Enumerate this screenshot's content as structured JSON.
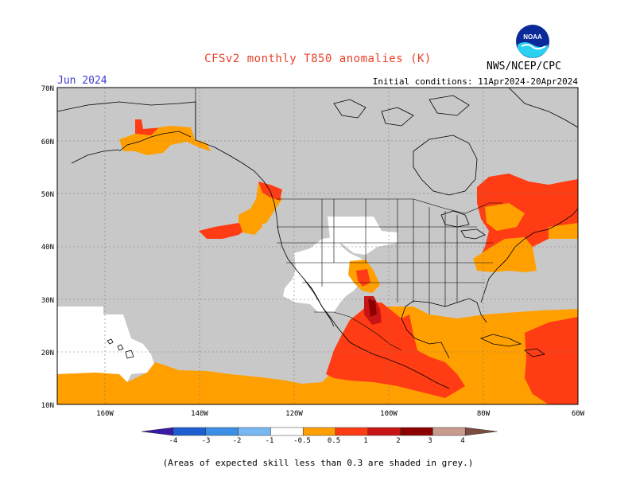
{
  "header": {
    "title": "CFSv2 monthly T850 anomalies (K)",
    "valid_month": "Jun 2024",
    "initial_conditions": "Initial conditions: 11Apr2024-20Apr2024",
    "agency": "NWS/NCEP/CPC",
    "logo_text": "NOAA"
  },
  "map": {
    "region": "North America and eastern Pacific",
    "lon_range": [
      -170,
      -60
    ],
    "lat_range": [
      10,
      70
    ],
    "background_colors": {
      "low_skill_grey": "#c8c8c8",
      "neutral_white": "#ffffff",
      "coastline": "#000000"
    },
    "lat_ticks": [
      "10N",
      "20N",
      "30N",
      "40N",
      "50N",
      "60N",
      "70N"
    ],
    "lon_ticks": [
      "160W",
      "140W",
      "120W",
      "100W",
      "80W",
      "60W"
    ]
  },
  "colorbar": {
    "labels": [
      "-4",
      "-3",
      "-2",
      "-1",
      "-0.5",
      "0.5",
      "1",
      "2",
      "3",
      "4"
    ],
    "colors": [
      "#3a18a8",
      "#1e5ed0",
      "#3c8ee6",
      "#78b8f2",
      "#ffffff",
      "#ffa000",
      "#ff3c14",
      "#c81414",
      "#8c0000",
      "#c89c8c",
      "#7c4c40"
    ]
  },
  "footnote": "(Areas of expected skill less than 0.3 are shaded in grey.)"
}
